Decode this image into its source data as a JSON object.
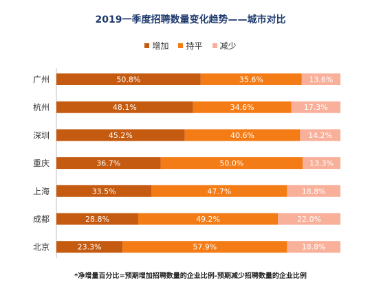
{
  "chart_data": {
    "type": "bar",
    "orientation": "horizontal",
    "stacked": true,
    "title": "2019一季度招聘数量变化趋势——城市对比",
    "categories": [
      "广州",
      "杭州",
      "深圳",
      "重庆",
      "上海",
      "成都",
      "北京"
    ],
    "series": [
      {
        "name": "增加",
        "color": "#c55a11",
        "values": [
          50.8,
          48.1,
          45.2,
          36.7,
          33.5,
          28.8,
          23.3
        ],
        "labels": [
          "50.8%",
          "48.1%",
          "45.2%",
          "36.7%",
          "33.5%",
          "28.8%",
          "23.3%"
        ]
      },
      {
        "name": "持平",
        "color": "#f47c16",
        "values": [
          35.6,
          34.6,
          40.6,
          50.0,
          47.7,
          49.2,
          57.9
        ],
        "labels": [
          "35.6%",
          "34.6%",
          "40.6%",
          "50.0%",
          "47.7%",
          "49.2%",
          "57.9%"
        ]
      },
      {
        "name": "减少",
        "color": "#f8b09a",
        "values": [
          13.6,
          17.3,
          14.2,
          13.3,
          18.8,
          22.0,
          18.8
        ],
        "labels": [
          "13.6%",
          "17.3%",
          "14.2%",
          "13.3%",
          "18.8%",
          "22.0%",
          "18.8%"
        ]
      }
    ],
    "xlim": [
      0,
      100
    ],
    "legend_position": "top-center",
    "grid": false
  },
  "footnote": "*净增量百分比=预期增加招聘数量的企业比例-预期减少招聘数量的企业比例"
}
